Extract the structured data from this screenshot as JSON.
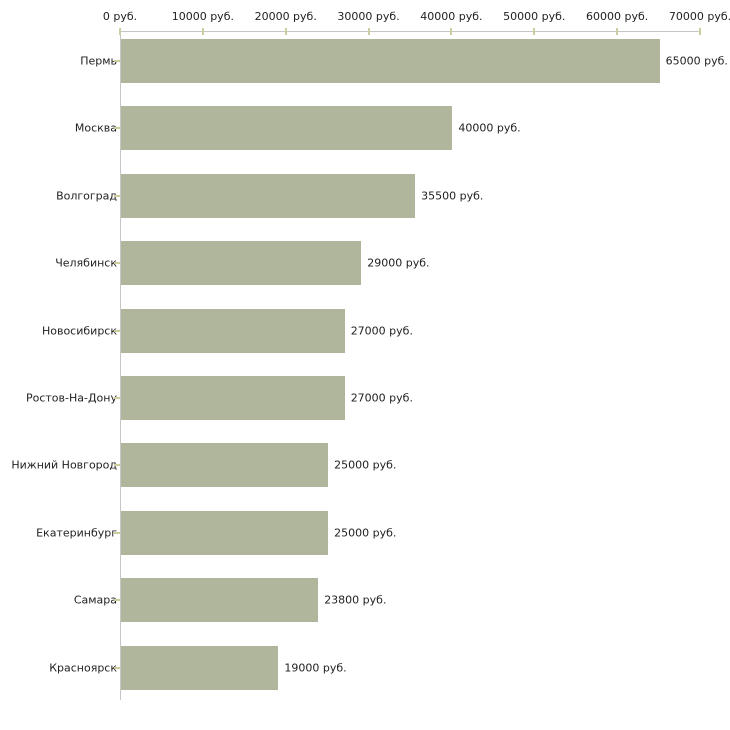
{
  "chart_data": {
    "type": "bar",
    "orientation": "horizontal",
    "title": "",
    "categories": [
      "Пермь",
      "Москва",
      "Волгоград",
      "Челябинск",
      "Новосибирск",
      "Ростов-На-Дону",
      "Нижний Новгород",
      "Екатеринбург",
      "Самара",
      "Красноярск"
    ],
    "values": [
      65000,
      40000,
      35500,
      29000,
      27000,
      27000,
      25000,
      25000,
      23800,
      19000
    ],
    "value_labels": [
      "65000 руб.",
      "40000 руб.",
      "35500 руб.",
      "29000 руб.",
      "27000 руб.",
      "27000 руб.",
      "25000 руб.",
      "25000 руб.",
      "23800 руб.",
      "19000 руб."
    ],
    "x_axis": {
      "position": "top",
      "min": 0,
      "max": 70000,
      "ticks": [
        0,
        10000,
        20000,
        30000,
        40000,
        50000,
        60000,
        70000
      ],
      "tick_labels": [
        "0 руб.",
        "10000 руб.",
        "20000 руб.",
        "30000 руб.",
        "40000 руб.",
        "50000 руб.",
        "60000 руб.",
        "70000 руб."
      ]
    },
    "grid": false,
    "legend": false,
    "colors": {
      "bar": "#b0b69b",
      "axis_line": "#c6c6c6",
      "tick": "#cdcda0",
      "text": "#222222",
      "background": "#ffffff"
    }
  }
}
